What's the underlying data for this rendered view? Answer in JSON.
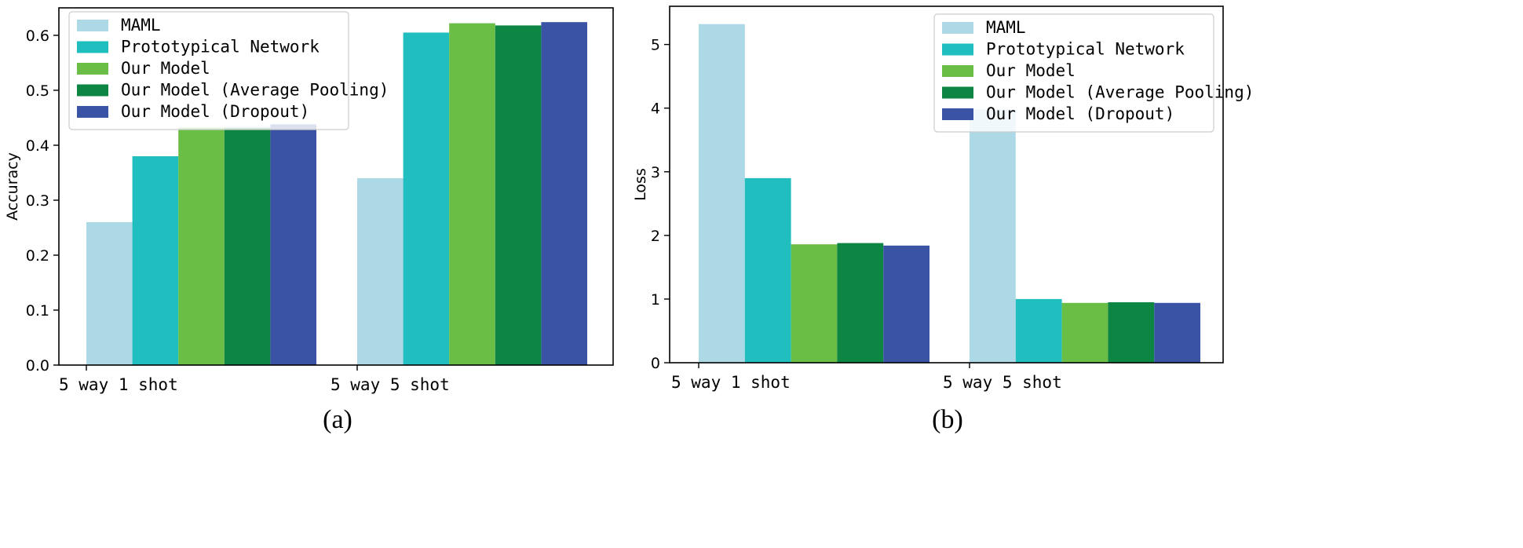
{
  "chart_data": [
    {
      "type": "bar",
      "caption": "(a)",
      "ylabel": "Accuracy",
      "xlabel": "",
      "categories": [
        "5 way 1 shot",
        "5 way 5 shot"
      ],
      "ylim": [
        0,
        0.65
      ],
      "yticks": [
        0.0,
        0.1,
        0.2,
        0.3,
        0.4,
        0.5,
        0.6
      ],
      "ytick_labels": [
        "0.0",
        "0.1",
        "0.2",
        "0.3",
        "0.4",
        "0.5",
        "0.6"
      ],
      "legend_position": "top-left",
      "series": [
        {
          "name": "MAML",
          "color": "#ADD8E6",
          "values": [
            0.26,
            0.34
          ]
        },
        {
          "name": "Prototypical Network",
          "color": "#20BEBE",
          "values": [
            0.38,
            0.605
          ]
        },
        {
          "name": "Our Model",
          "color": "#6ABD45",
          "values": [
            0.432,
            0.622
          ]
        },
        {
          "name": "Our Model (Average Pooling)",
          "color": "#0D8644",
          "values": [
            0.432,
            0.618
          ]
        },
        {
          "name": "Our Model (Dropout)",
          "color": "#3A53A4",
          "values": [
            0.438,
            0.624
          ]
        }
      ]
    },
    {
      "type": "bar",
      "caption": "(b)",
      "ylabel": "Loss",
      "xlabel": "",
      "categories": [
        "5 way 1 shot",
        "5 way 5 shot"
      ],
      "ylim": [
        0,
        5.6
      ],
      "yticks": [
        0,
        1,
        2,
        3,
        4,
        5
      ],
      "ytick_labels": [
        "0",
        "1",
        "2",
        "3",
        "4",
        "5"
      ],
      "legend_position": "top-right",
      "series": [
        {
          "name": "MAML",
          "color": "#ADD8E6",
          "values": [
            5.32,
            3.98
          ]
        },
        {
          "name": "Prototypical Network",
          "color": "#20BEBE",
          "values": [
            2.9,
            1.0
          ]
        },
        {
          "name": "Our Model",
          "color": "#6ABD45",
          "values": [
            1.86,
            0.94
          ]
        },
        {
          "name": "Our Model (Average Pooling)",
          "color": "#0D8644",
          "values": [
            1.88,
            0.95
          ]
        },
        {
          "name": "Our Model (Dropout)",
          "color": "#3A53A4",
          "values": [
            1.84,
            0.94
          ]
        }
      ]
    }
  ]
}
